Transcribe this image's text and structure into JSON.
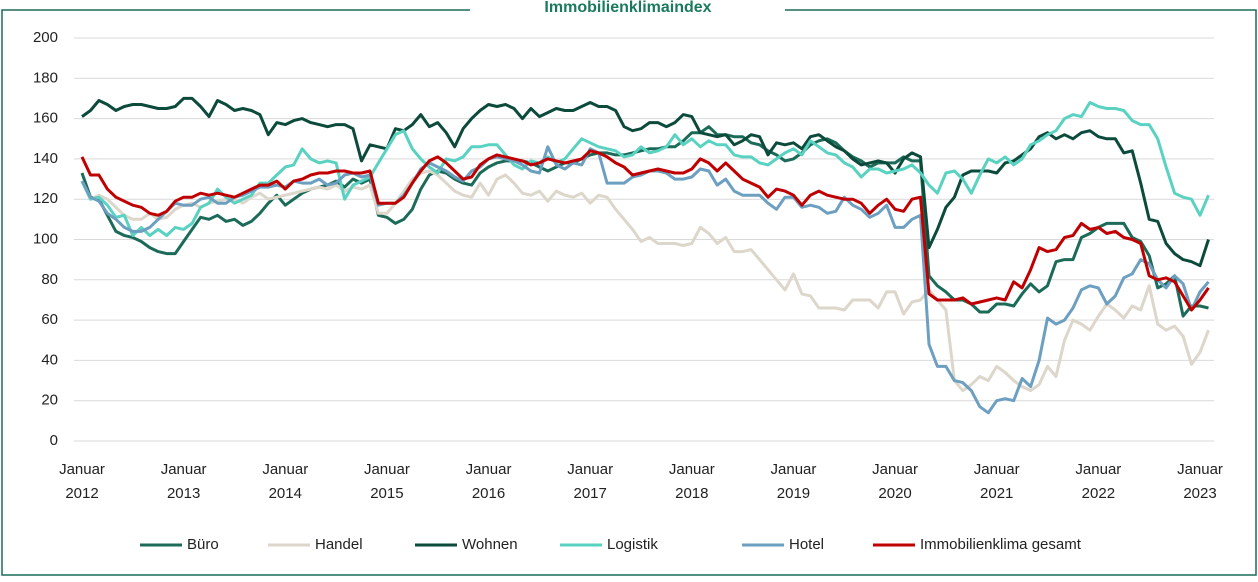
{
  "chart_data": {
    "type": "line",
    "title": "Immobilienklimaindex",
    "categories": [
      "Januar 2012",
      null,
      null,
      null,
      null,
      null,
      null,
      null,
      null,
      null,
      null,
      null,
      "Januar 2013",
      null,
      null,
      null,
      null,
      null,
      null,
      null,
      null,
      null,
      null,
      null,
      "Januar 2014",
      null,
      null,
      null,
      null,
      null,
      null,
      null,
      null,
      null,
      null,
      null,
      "Januar 2015",
      null,
      null,
      null,
      null,
      null,
      null,
      null,
      null,
      null,
      null,
      null,
      "Januar 2016",
      null,
      null,
      null,
      null,
      null,
      null,
      null,
      null,
      null,
      null,
      null,
      "Januar 2017",
      null,
      null,
      null,
      null,
      null,
      null,
      null,
      null,
      null,
      null,
      null,
      "Januar 2018",
      null,
      null,
      null,
      null,
      null,
      null,
      null,
      null,
      null,
      null,
      null,
      "Januar 2019",
      null,
      null,
      null,
      null,
      null,
      null,
      null,
      null,
      null,
      null,
      null,
      "Januar 2020",
      null,
      null,
      null,
      null,
      null,
      null,
      null,
      null,
      null,
      null,
      null,
      "Januar 2021",
      null,
      null,
      null,
      null,
      null,
      null,
      null,
      null,
      null,
      null,
      null,
      "Januar 2022",
      null,
      null,
      null,
      null,
      null,
      null,
      null,
      null,
      null,
      null,
      null,
      "Januar 2023",
      null
    ],
    "series": [
      {
        "name": "Büro",
        "color": "#1b6b58",
        "values": [
          133,
          121,
          120,
          112,
          104,
          102,
          101,
          99,
          96,
          94,
          93,
          93,
          99,
          105,
          111,
          110,
          112,
          109,
          110,
          107,
          109,
          113,
          118,
          122,
          117,
          120,
          123,
          125,
          126,
          127,
          129,
          126,
          130,
          128,
          130,
          112,
          111,
          108,
          110,
          115,
          125,
          132,
          134,
          133,
          130,
          128,
          127,
          133,
          136,
          138,
          139,
          139,
          139,
          138,
          136,
          134,
          136,
          138,
          138,
          140,
          142,
          143,
          143,
          142,
          142,
          143,
          144,
          145,
          145,
          146,
          146,
          149,
          153,
          153,
          156,
          152,
          152,
          151,
          151,
          148,
          147,
          144,
          142,
          139,
          140,
          143,
          147,
          149,
          150,
          148,
          144,
          141,
          139,
          136,
          138,
          138,
          138,
          141,
          139,
          139,
          82,
          77,
          74,
          70,
          70,
          68,
          64,
          64,
          68,
          68,
          67,
          73,
          78,
          74,
          77,
          89,
          90,
          90,
          101,
          103,
          106,
          108,
          108,
          108,
          101,
          99,
          92,
          76,
          78,
          82,
          62,
          67,
          67,
          66
        ]
      },
      {
        "name": "Handel",
        "color": "#ddd6ca",
        "values": [
          129,
          120,
          122,
          120,
          116,
          112,
          110,
          110,
          113,
          110,
          111,
          115,
          117,
          118,
          116,
          118,
          119,
          120,
          120,
          118,
          121,
          123,
          120,
          121,
          122,
          123,
          124,
          125,
          126,
          125,
          127,
          124,
          126,
          125,
          127,
          113,
          113,
          118,
          124,
          130,
          133,
          134,
          132,
          128,
          124,
          122,
          121,
          128,
          122,
          130,
          132,
          128,
          123,
          122,
          124,
          119,
          124,
          122,
          121,
          123,
          118,
          122,
          121,
          115,
          110,
          105,
          99,
          101,
          98,
          98,
          98,
          97,
          98,
          106,
          103,
          98,
          101,
          94,
          94,
          95,
          90,
          85,
          80,
          75,
          83,
          73,
          72,
          66,
          66,
          66,
          65,
          70,
          70,
          70,
          66,
          74,
          74,
          63,
          69,
          70,
          75,
          70,
          65,
          30,
          25,
          28,
          32,
          30,
          37,
          34,
          30,
          27,
          25,
          28,
          37,
          32,
          50,
          60,
          58,
          55,
          62,
          68,
          65,
          61,
          67,
          65,
          77,
          58,
          55,
          57,
          52,
          38,
          44,
          55
        ]
      },
      {
        "name": "Wohnen",
        "color": "#0c4a3b",
        "values": [
          161,
          164,
          169,
          167,
          164,
          166,
          167,
          167,
          166,
          165,
          165,
          166,
          170,
          170,
          166,
          161,
          169,
          167,
          164,
          165,
          164,
          162,
          152,
          158,
          157,
          159,
          160,
          158,
          157,
          156,
          157,
          157,
          155,
          139,
          147,
          146,
          145,
          155,
          154,
          157,
          162,
          156,
          158,
          153,
          146,
          155,
          160,
          164,
          167,
          166,
          167,
          165,
          160,
          165,
          161,
          163,
          165,
          164,
          164,
          166,
          168,
          166,
          166,
          164,
          156,
          154,
          155,
          158,
          158,
          156,
          158,
          162,
          161,
          153,
          152,
          151,
          152,
          147,
          149,
          152,
          151,
          142,
          148,
          147,
          148,
          145,
          151,
          152,
          149,
          146,
          144,
          140,
          137,
          138,
          139,
          138,
          133,
          140,
          143,
          141,
          96,
          105,
          116,
          121,
          132,
          134,
          134,
          134,
          133,
          138,
          139,
          142,
          145,
          151,
          153,
          150,
          152,
          150,
          153,
          154,
          151,
          150,
          150,
          143,
          144,
          128,
          110,
          109,
          98,
          93,
          90,
          89,
          87,
          100
        ]
      },
      {
        "name": "Logistik",
        "color": "#5ad2c2",
        "values": [
          129,
          120,
          121,
          117,
          111,
          112,
          102,
          106,
          102,
          105,
          102,
          106,
          105,
          108,
          116,
          118,
          125,
          121,
          118,
          120,
          122,
          128,
          128,
          132,
          136,
          137,
          145,
          140,
          138,
          139,
          138,
          120,
          127,
          129,
          131,
          138,
          145,
          152,
          154,
          145,
          140,
          136,
          133,
          140,
          139,
          141,
          146,
          146,
          147,
          147,
          142,
          137,
          135,
          139,
          138,
          141,
          138,
          140,
          145,
          150,
          148,
          146,
          145,
          144,
          141,
          142,
          146,
          143,
          144,
          146,
          152,
          147,
          150,
          146,
          149,
          147,
          147,
          142,
          141,
          141,
          138,
          137,
          140,
          143,
          145,
          142,
          149,
          146,
          143,
          142,
          138,
          136,
          131,
          135,
          135,
          133,
          134,
          135,
          137,
          133,
          127,
          123,
          133,
          134,
          130,
          123,
          132,
          140,
          138,
          141,
          137,
          140,
          147,
          149,
          152,
          154,
          160,
          162,
          161,
          168,
          166,
          165,
          165,
          164,
          159,
          157,
          157,
          150,
          136,
          123,
          121,
          120,
          112,
          122
        ]
      },
      {
        "name": "Hotel",
        "color": "#6c9fc0",
        "values": [
          129,
          121,
          119,
          113,
          110,
          106,
          104,
          104,
          106,
          110,
          114,
          118,
          117,
          117,
          120,
          121,
          118,
          118,
          121,
          122,
          124,
          126,
          126,
          127,
          126,
          129,
          128,
          128,
          130,
          127,
          128,
          132,
          133,
          131,
          132,
          117,
          118,
          118,
          122,
          128,
          135,
          138,
          136,
          134,
          131,
          129,
          134,
          136,
          140,
          141,
          140,
          139,
          137,
          134,
          133,
          146,
          137,
          135,
          138,
          137,
          145,
          143,
          128,
          128,
          128,
          131,
          132,
          134,
          134,
          133,
          130,
          130,
          131,
          135,
          134,
          127,
          130,
          124,
          122,
          122,
          122,
          118,
          115,
          121,
          121,
          116,
          117,
          116,
          113,
          114,
          121,
          117,
          115,
          111,
          113,
          117,
          106,
          106,
          110,
          112,
          48,
          37,
          37,
          30,
          29,
          25,
          17,
          14,
          20,
          21,
          20,
          31,
          27,
          40,
          61,
          58,
          60,
          66,
          75,
          77,
          76,
          68,
          72,
          81,
          83,
          90,
          88,
          80,
          76,
          82,
          78,
          65,
          74,
          79
        ]
      },
      {
        "name": "Immobilienklima gesamt",
        "color": "#c00000",
        "values": [
          141,
          132,
          132,
          125,
          121,
          119,
          117,
          116,
          113,
          112,
          114,
          119,
          121,
          121,
          123,
          122,
          123,
          122,
          121,
          123,
          125,
          127,
          127,
          129,
          125,
          129,
          130,
          132,
          133,
          133,
          134,
          134,
          133,
          133,
          134,
          118,
          118,
          118,
          121,
          128,
          134,
          139,
          141,
          138,
          134,
          130,
          131,
          137,
          140,
          142,
          141,
          140,
          139,
          137,
          138,
          140,
          139,
          138,
          139,
          140,
          144,
          143,
          141,
          138,
          136,
          132,
          133,
          134,
          135,
          134,
          133,
          133,
          135,
          140,
          138,
          134,
          138,
          134,
          130,
          128,
          126,
          121,
          125,
          124,
          122,
          117,
          122,
          124,
          122,
          121,
          120,
          120,
          118,
          113,
          117,
          120,
          115,
          114,
          120,
          121,
          73,
          70,
          70,
          70,
          71,
          68,
          69,
          70,
          71,
          70,
          79,
          76,
          85,
          96,
          94,
          95,
          101,
          102,
          108,
          105,
          106,
          103,
          104,
          101,
          100,
          98,
          82,
          80,
          81,
          79,
          72,
          65,
          70,
          76
        ]
      }
    ],
    "ylim": [
      0,
      200
    ],
    "yticks": [
      0,
      20,
      40,
      60,
      80,
      100,
      120,
      140,
      160,
      180,
      200
    ],
    "grid": true,
    "legend": "bottom"
  }
}
